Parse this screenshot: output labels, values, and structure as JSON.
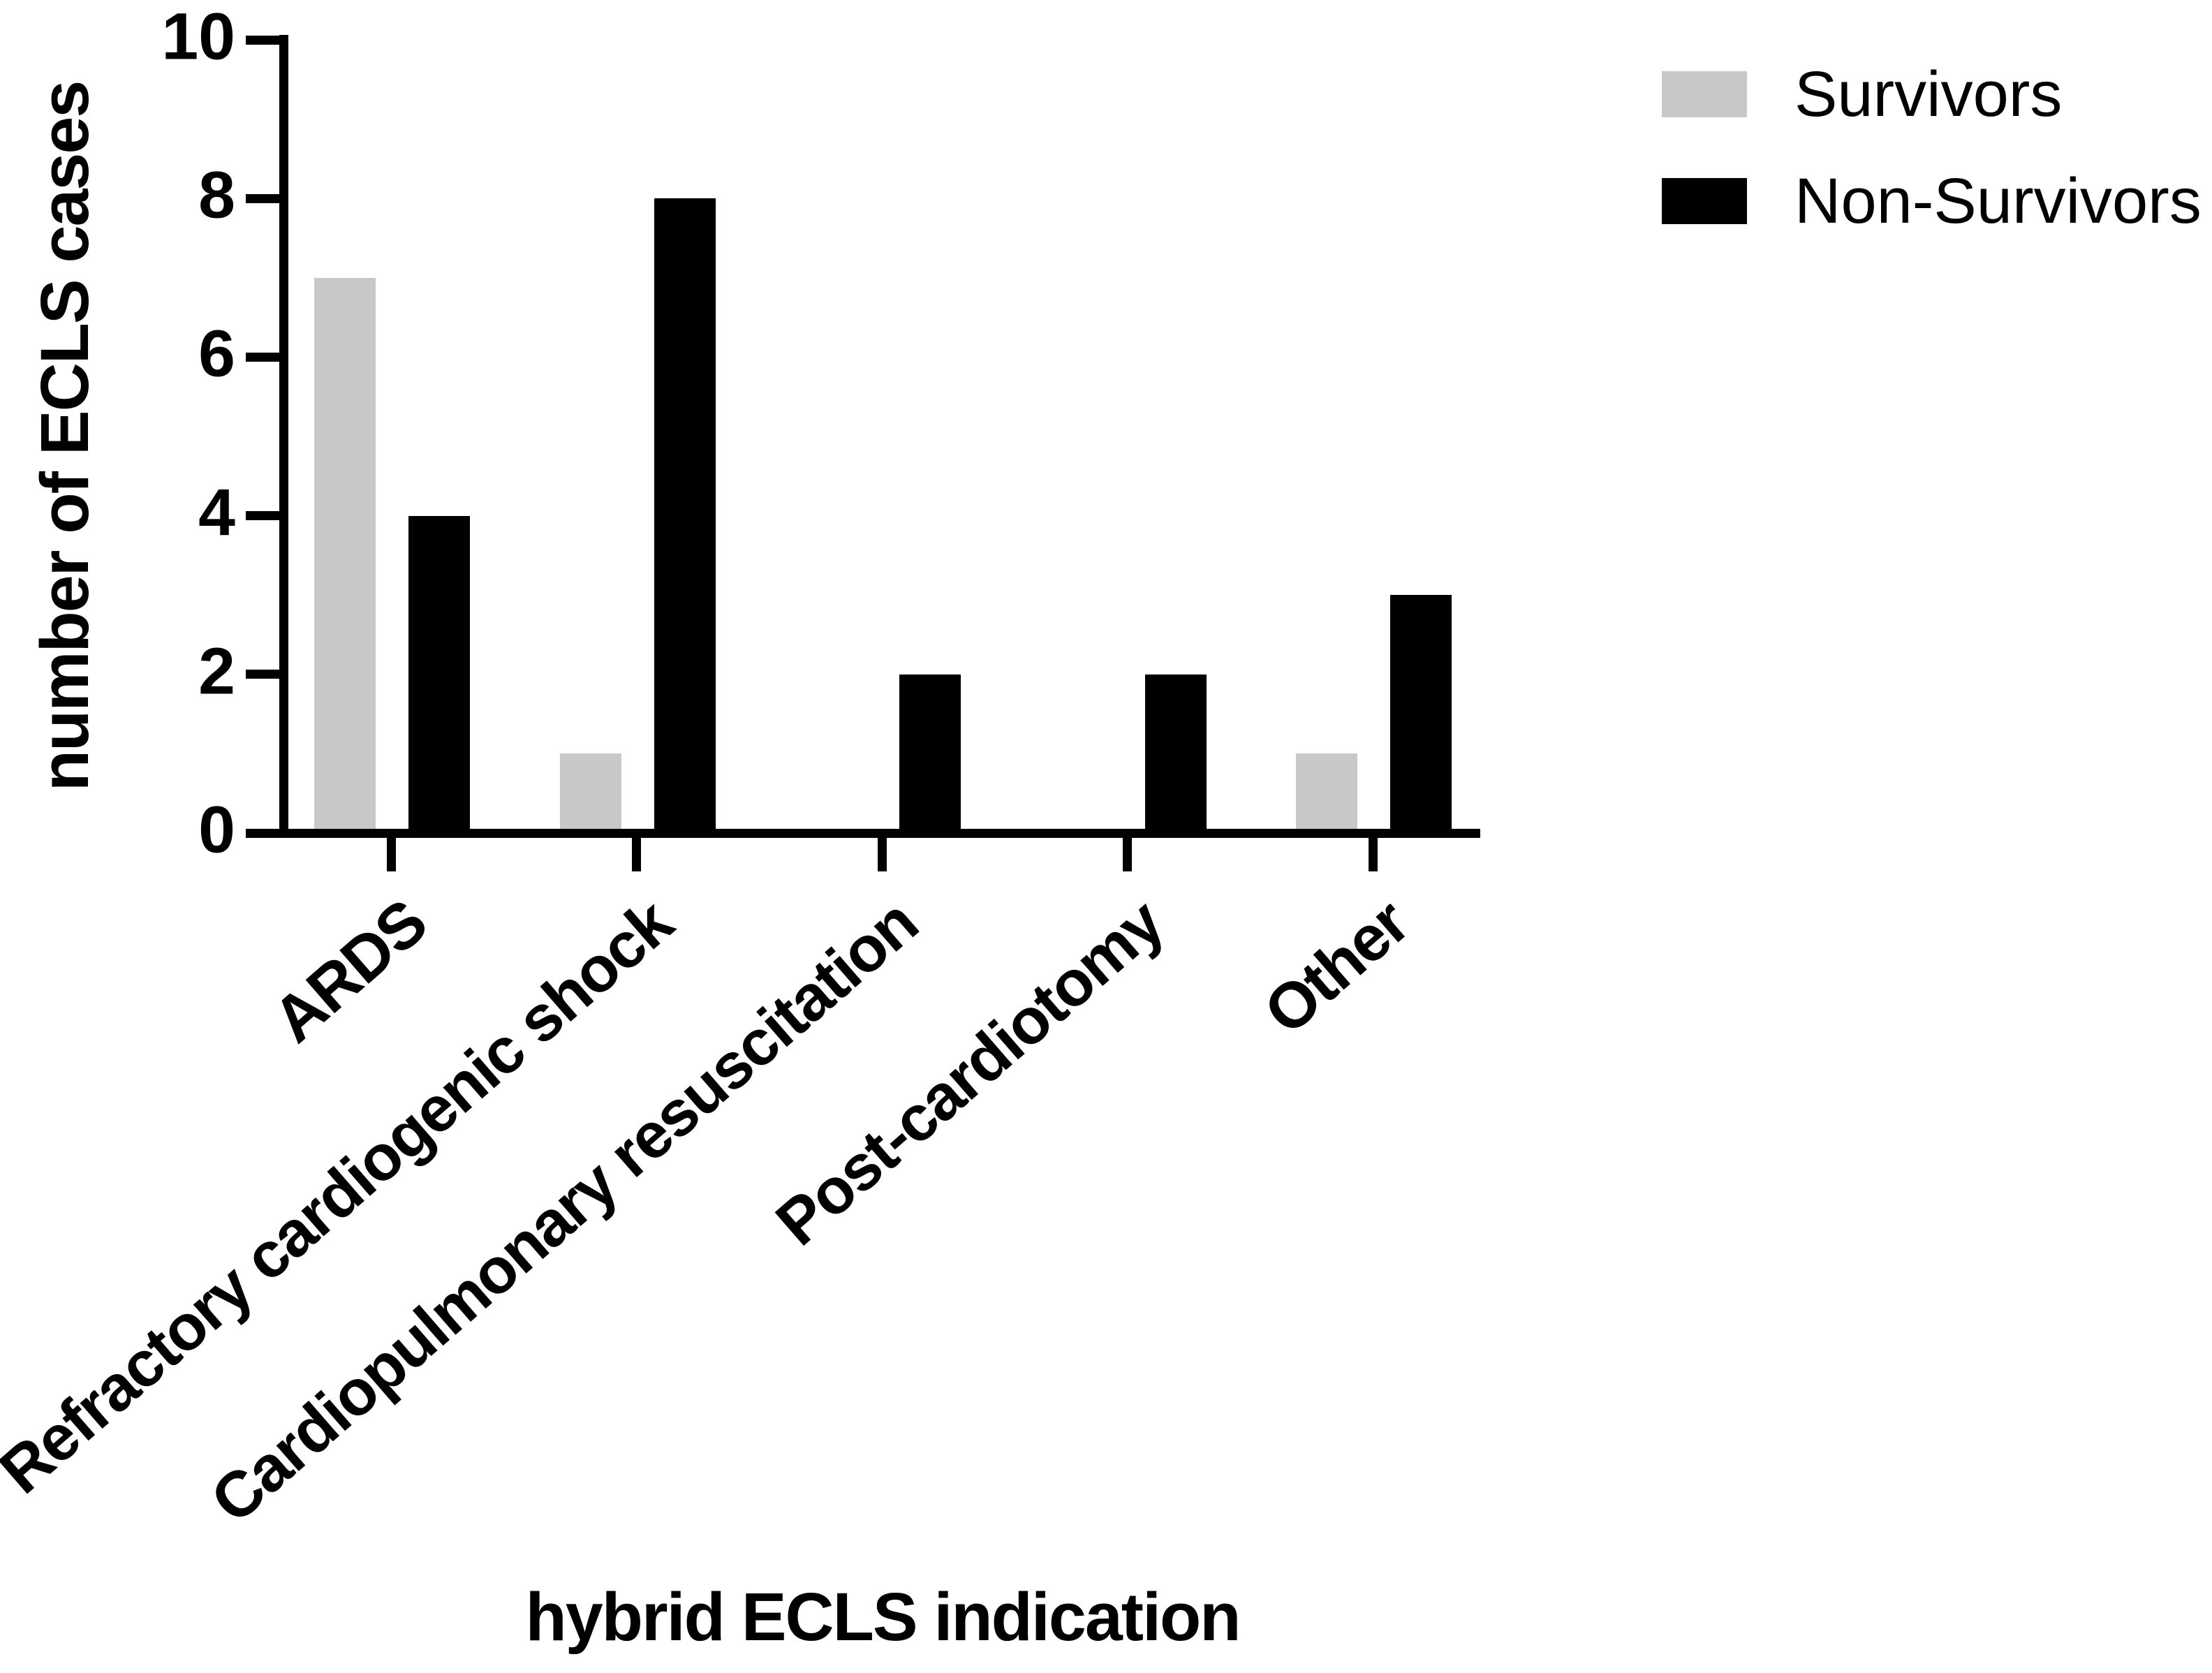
{
  "figure": {
    "background": "#ffffff",
    "bar_black": "#000000",
    "bar_gray": "#c8c8c8",
    "text_color": "#000000"
  },
  "chart_data": {
    "type": "bar",
    "bar_orientation": "vertical",
    "title": "",
    "xlabel": "hybrid ECLS indication",
    "ylabel": "number of ECLS cases",
    "categories": [
      "ARDS",
      "Refractory cardiogenic shock",
      "Cardiopulmonary resuscitation",
      "Post-cardiotomy",
      "Other"
    ],
    "series": [
      {
        "name": "Survivors",
        "color": "#c8c8c8",
        "values": [
          7,
          1,
          0,
          0,
          1
        ]
      },
      {
        "name": "Non-Survivors",
        "color": "#000000",
        "values": [
          4,
          8,
          2,
          2,
          3
        ]
      }
    ],
    "ylim": [
      0,
      10
    ],
    "yticks": [
      0,
      2,
      4,
      6,
      8,
      10
    ],
    "grid": false,
    "legend_position": "top-right"
  }
}
